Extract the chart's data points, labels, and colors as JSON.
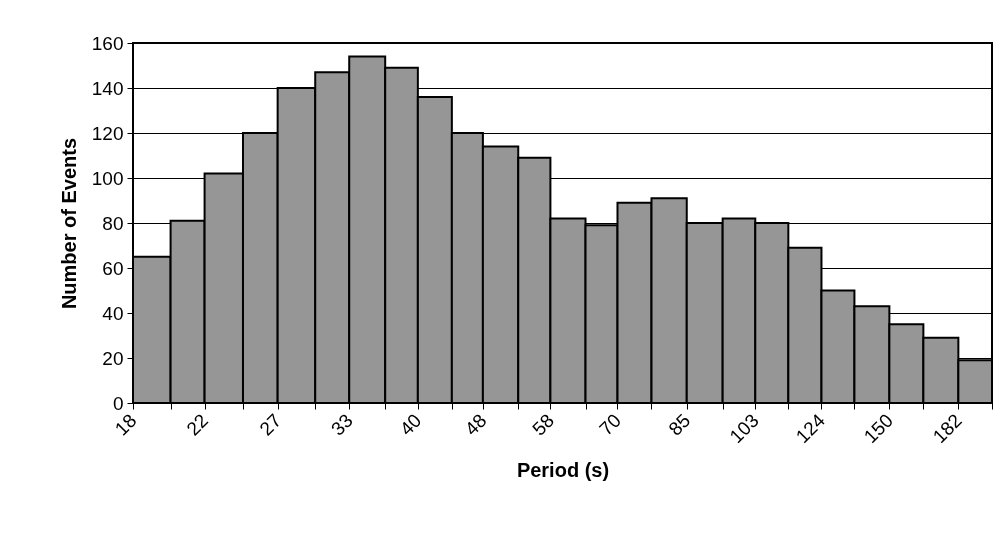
{
  "chart_data": {
    "type": "histogram",
    "xlabel": "Period (s)",
    "ylabel": "Number of Events",
    "log": "x",
    "grid": "y",
    "color": "#969696",
    "bins": [
      18,
      20,
      22,
      24.5,
      27,
      30,
      33,
      36.5,
      40,
      44,
      48,
      53,
      58,
      64,
      70,
      77,
      85,
      94,
      103,
      113,
      124,
      136,
      150,
      165,
      182,
      200
    ],
    "values": [
      65,
      81,
      102,
      120,
      140,
      147,
      154,
      149,
      136,
      120,
      114,
      109,
      82,
      79,
      89,
      91,
      80,
      82,
      80,
      69,
      50,
      43,
      35,
      29,
      19
    ],
    "xlim": [
      18,
      200
    ],
    "xticks": [
      18,
      {
        "value": 20,
        "label": null
      },
      22,
      {
        "value": 24.5,
        "label": null
      },
      27,
      {
        "value": 30,
        "label": null
      },
      33,
      {
        "value": 36.5,
        "label": null
      },
      40,
      {
        "value": 44,
        "label": null
      },
      48,
      {
        "value": 53,
        "label": null
      },
      58,
      {
        "value": 64,
        "label": null
      },
      70,
      {
        "value": 77,
        "label": null
      },
      85,
      {
        "value": 94,
        "label": null
      },
      103,
      {
        "value": 113,
        "label": null
      },
      124,
      {
        "value": 136,
        "label": null
      },
      150,
      {
        "value": 165,
        "label": null
      },
      182,
      {
        "value": 200,
        "label": null
      }
    ],
    "ylim": [
      0,
      160
    ],
    "yticks": [
      0,
      20,
      40,
      60,
      80,
      100,
      120,
      140,
      160
    ]
  }
}
